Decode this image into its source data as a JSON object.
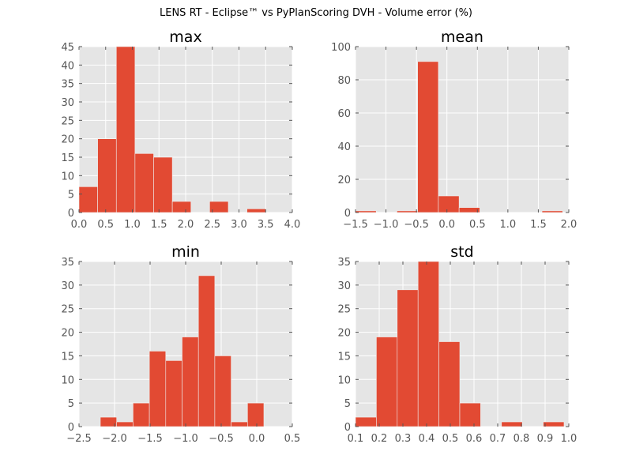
{
  "figure": {
    "title": "LENS RT - Eclipse™ vs PyPlanScoring DVH - Volume error (%)"
  },
  "colors": {
    "bar": "#E24A33",
    "plot_background": "#E5E5E5",
    "grid": "#FFFFFF",
    "tick_text": "#555555"
  },
  "chart_data": [
    {
      "type": "histogram",
      "title": "max",
      "xlim": [
        0.0,
        4.0
      ],
      "ylim": [
        0,
        45
      ],
      "xticks": [
        "0.0",
        "0.5",
        "1.0",
        "1.5",
        "2.0",
        "2.5",
        "3.0",
        "3.5",
        "4.0"
      ],
      "xtick_values": [
        0,
        0.5,
        1,
        1.5,
        2,
        2.5,
        3,
        3.5,
        4
      ],
      "yticks": [
        "0",
        "5",
        "10",
        "15",
        "20",
        "25",
        "30",
        "35",
        "40",
        "45"
      ],
      "ytick_values": [
        0,
        5,
        10,
        15,
        20,
        25,
        30,
        35,
        40,
        45
      ],
      "grid": true,
      "bins": [
        {
          "x0": 0.0,
          "x1": 0.35,
          "count": 7
        },
        {
          "x0": 0.35,
          "x1": 0.7,
          "count": 20
        },
        {
          "x0": 0.7,
          "x1": 1.05,
          "count": 45
        },
        {
          "x0": 1.05,
          "x1": 1.4,
          "count": 16
        },
        {
          "x0": 1.4,
          "x1": 1.75,
          "count": 15
        },
        {
          "x0": 1.75,
          "x1": 2.1,
          "count": 3
        },
        {
          "x0": 2.1,
          "x1": 2.45,
          "count": 0
        },
        {
          "x0": 2.45,
          "x1": 2.8,
          "count": 3
        },
        {
          "x0": 2.8,
          "x1": 3.15,
          "count": 0
        },
        {
          "x0": 3.15,
          "x1": 3.5,
          "count": 1
        }
      ]
    },
    {
      "type": "histogram",
      "title": "mean",
      "xlim": [
        -1.5,
        2.0
      ],
      "ylim": [
        0,
        100
      ],
      "xticks": [
        "−1.5",
        "−1.0",
        "−0.5",
        "0.0",
        "0.5",
        "1.0",
        "1.5",
        "2.0"
      ],
      "xtick_values": [
        -1.5,
        -1.0,
        -0.5,
        0.0,
        0.5,
        1.0,
        1.5,
        2.0
      ],
      "yticks": [
        "0",
        "20",
        "40",
        "60",
        "80",
        "100"
      ],
      "ytick_values": [
        0,
        20,
        40,
        60,
        80,
        100
      ],
      "grid": true,
      "bins": [
        {
          "x0": -1.5,
          "x1": -1.16,
          "count": 1
        },
        {
          "x0": -1.16,
          "x1": -0.82,
          "count": 0
        },
        {
          "x0": -0.82,
          "x1": -0.48,
          "count": 1
        },
        {
          "x0": -0.48,
          "x1": -0.14,
          "count": 91
        },
        {
          "x0": -0.14,
          "x1": 0.2,
          "count": 10
        },
        {
          "x0": 0.2,
          "x1": 0.54,
          "count": 3
        },
        {
          "x0": 0.54,
          "x1": 0.88,
          "count": 0
        },
        {
          "x0": 0.88,
          "x1": 1.22,
          "count": 0
        },
        {
          "x0": 1.22,
          "x1": 1.56,
          "count": 0
        },
        {
          "x0": 1.56,
          "x1": 1.9,
          "count": 1
        }
      ]
    },
    {
      "type": "histogram",
      "title": "min",
      "xlim": [
        -2.5,
        0.5
      ],
      "ylim": [
        0,
        35
      ],
      "xticks": [
        "−2.5",
        "−2.0",
        "−1.5",
        "−1.0",
        "−0.5",
        "0.0",
        "0.5"
      ],
      "xtick_values": [
        -2.5,
        -2.0,
        -1.5,
        -1.0,
        -0.5,
        0.0,
        0.5
      ],
      "yticks": [
        "0",
        "5",
        "10",
        "15",
        "20",
        "25",
        "30",
        "35"
      ],
      "ytick_values": [
        0,
        5,
        10,
        15,
        20,
        25,
        30,
        35
      ],
      "grid": true,
      "bins": [
        {
          "x0": -2.2,
          "x1": -1.97,
          "count": 2
        },
        {
          "x0": -1.97,
          "x1": -1.74,
          "count": 1
        },
        {
          "x0": -1.74,
          "x1": -1.51,
          "count": 5
        },
        {
          "x0": -1.51,
          "x1": -1.28,
          "count": 16
        },
        {
          "x0": -1.28,
          "x1": -1.05,
          "count": 14
        },
        {
          "x0": -1.05,
          "x1": -0.82,
          "count": 19
        },
        {
          "x0": -0.82,
          "x1": -0.59,
          "count": 32
        },
        {
          "x0": -0.59,
          "x1": -0.36,
          "count": 15
        },
        {
          "x0": -0.36,
          "x1": -0.13,
          "count": 1
        },
        {
          "x0": -0.13,
          "x1": 0.1,
          "count": 5
        }
      ]
    },
    {
      "type": "histogram",
      "title": "std",
      "xlim": [
        0.1,
        1.0
      ],
      "ylim": [
        0,
        35
      ],
      "xticks": [
        "0.1",
        "0.2",
        "0.3",
        "0.4",
        "0.5",
        "0.6",
        "0.7",
        "0.8",
        "0.9",
        "1.0"
      ],
      "xtick_values": [
        0.1,
        0.2,
        0.3,
        0.4,
        0.5,
        0.6,
        0.7,
        0.8,
        0.9,
        1.0
      ],
      "yticks": [
        "0",
        "5",
        "10",
        "15",
        "20",
        "25",
        "30",
        "35"
      ],
      "ytick_values": [
        0,
        5,
        10,
        15,
        20,
        25,
        30,
        35
      ],
      "grid": true,
      "bins": [
        {
          "x0": 0.1,
          "x1": 0.188,
          "count": 2
        },
        {
          "x0": 0.188,
          "x1": 0.276,
          "count": 19
        },
        {
          "x0": 0.276,
          "x1": 0.364,
          "count": 29
        },
        {
          "x0": 0.364,
          "x1": 0.452,
          "count": 35
        },
        {
          "x0": 0.452,
          "x1": 0.54,
          "count": 18
        },
        {
          "x0": 0.54,
          "x1": 0.628,
          "count": 5
        },
        {
          "x0": 0.628,
          "x1": 0.716,
          "count": 0
        },
        {
          "x0": 0.716,
          "x1": 0.804,
          "count": 1
        },
        {
          "x0": 0.804,
          "x1": 0.892,
          "count": 0
        },
        {
          "x0": 0.892,
          "x1": 0.98,
          "count": 1
        }
      ]
    }
  ]
}
